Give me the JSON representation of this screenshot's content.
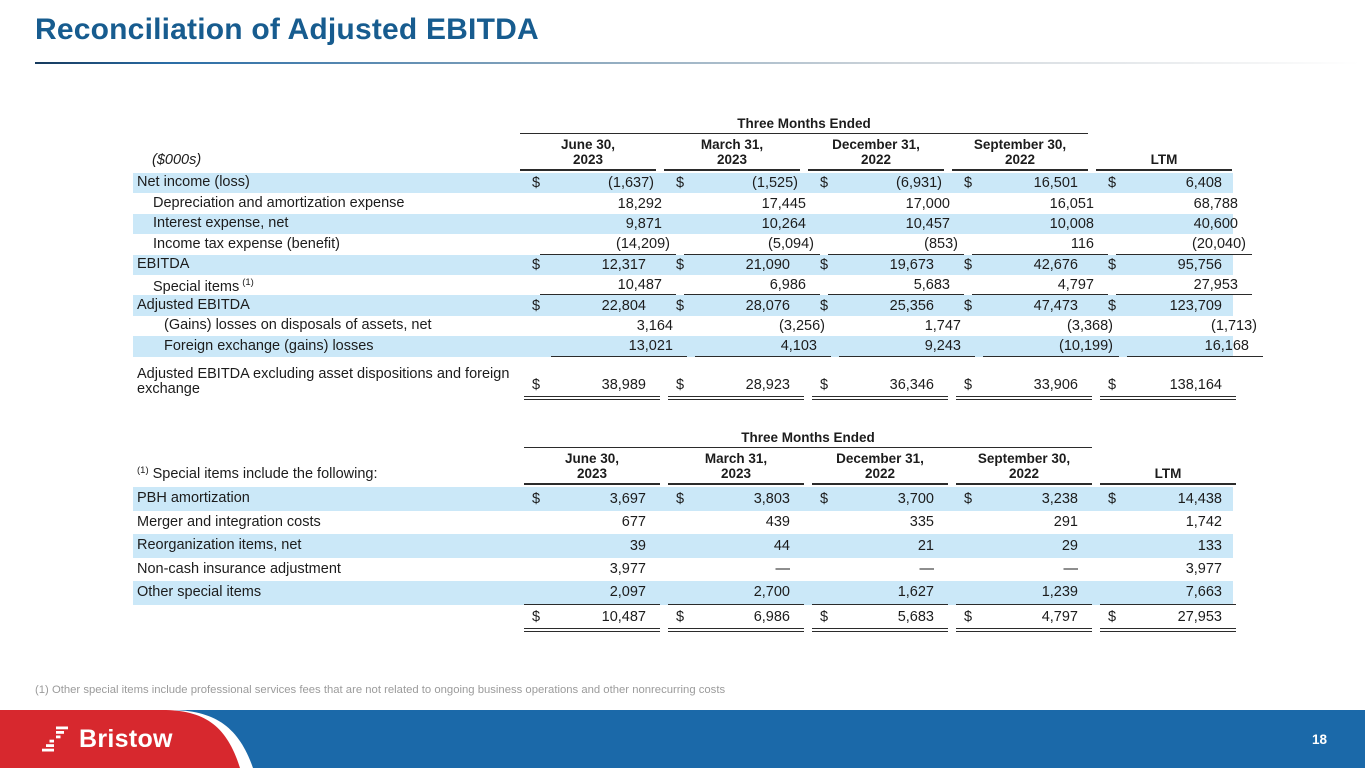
{
  "slide": {
    "title": "Reconciliation of Adjusted EBITDA",
    "page_number": "18",
    "footnote": "(1) Other special items include professional services fees that are not related to ongoing business operations and other nonrecurring costs",
    "logo_text": "Bristow"
  },
  "colors": {
    "title_blue": "#175C8F",
    "row_highlight": "#CBE8F8",
    "footer_blue": "#1B69A9",
    "footer_red": "#D7282E"
  },
  "table1": {
    "units_label": "($000s)",
    "span_header": "Three Months Ended",
    "currency": "$",
    "ltm_label": "LTM",
    "columns": [
      {
        "l1": "June 30,",
        "l2": "2023"
      },
      {
        "l1": "March 31,",
        "l2": "2023"
      },
      {
        "l1": "December 31,",
        "l2": "2022"
      },
      {
        "l1": "September 30,",
        "l2": "2022"
      }
    ],
    "rows": [
      {
        "label": "Net income (loss)",
        "indent": 0,
        "dollar": true,
        "highlight": true,
        "values": [
          "(1,637)",
          "(1,525)",
          "(6,931)",
          "16,501",
          "6,408"
        ]
      },
      {
        "label": "Depreciation and amortization expense",
        "indent": 1,
        "highlight": false,
        "values": [
          "18,292",
          "17,445",
          "17,000",
          "16,051",
          "68,788"
        ]
      },
      {
        "label": "Interest expense, net",
        "indent": 1,
        "highlight": true,
        "values": [
          "9,871",
          "10,264",
          "10,457",
          "10,008",
          "40,600"
        ]
      },
      {
        "label": "Income tax expense (benefit)",
        "indent": 1,
        "highlight": false,
        "underline": true,
        "values": [
          "(14,209)",
          "(5,094)",
          "(853)",
          "116",
          "(20,040)"
        ]
      },
      {
        "label": "EBITDA",
        "indent": 0,
        "dollar": true,
        "highlight": true,
        "values": [
          "12,317",
          "21,090",
          "19,673",
          "42,676",
          "95,756"
        ]
      },
      {
        "label": "Special items",
        "sup": "(1)",
        "indent": 1,
        "highlight": false,
        "underline": true,
        "values": [
          "10,487",
          "6,986",
          "5,683",
          "4,797",
          "27,953"
        ]
      },
      {
        "label": "Adjusted EBITDA",
        "indent": 0,
        "dollar": true,
        "highlight": true,
        "values": [
          "22,804",
          "28,076",
          "25,356",
          "47,473",
          "123,709"
        ]
      },
      {
        "label": "(Gains) losses on disposals of assets, net",
        "indent": 2,
        "highlight": false,
        "values": [
          "3,164",
          "(3,256)",
          "1,747",
          "(3,368)",
          "(1,713)"
        ]
      },
      {
        "label": "Foreign exchange (gains) losses",
        "indent": 2,
        "highlight": true,
        "underline": true,
        "values": [
          "13,021",
          "4,103",
          "9,243",
          "(10,199)",
          "16,168"
        ]
      },
      {
        "label": "Adjusted EBITDA excluding asset dispositions and foreign exchange",
        "indent": 0,
        "dollar": true,
        "highlight": false,
        "dbl": true,
        "tall": true,
        "values": [
          "38,989",
          "28,923",
          "36,346",
          "33,906",
          "138,164"
        ]
      }
    ]
  },
  "table2": {
    "label_sup": "(1)",
    "label_text": "Special items include the following:",
    "span_header": "Three Months Ended",
    "currency": "$",
    "ltm_label": "LTM",
    "columns": [
      {
        "l1": "June 30,",
        "l2": "2023"
      },
      {
        "l1": "March 31,",
        "l2": "2023"
      },
      {
        "l1": "December 31,",
        "l2": "2022"
      },
      {
        "l1": "September 30,",
        "l2": "2022"
      }
    ],
    "rows": [
      {
        "label": "PBH amortization",
        "indent": 0,
        "dollar": true,
        "highlight": true,
        "values": [
          "3,697",
          "3,803",
          "3,700",
          "3,238",
          "14,438"
        ]
      },
      {
        "label": "Merger and integration costs",
        "indent": 0,
        "highlight": false,
        "values": [
          "677",
          "439",
          "335",
          "291",
          "1,742"
        ]
      },
      {
        "label": "Reorganization items, net",
        "indent": 0,
        "highlight": true,
        "values": [
          "39",
          "44",
          "21",
          "29",
          "133"
        ]
      },
      {
        "label": "Non-cash insurance adjustment",
        "indent": 0,
        "highlight": false,
        "values": [
          "3,977",
          "—",
          "—",
          "—",
          "3,977"
        ]
      },
      {
        "label": "Other special items",
        "indent": 0,
        "highlight": true,
        "underline": true,
        "values": [
          "2,097",
          "2,700",
          "1,627",
          "1,239",
          "7,663"
        ]
      },
      {
        "label": "",
        "indent": 0,
        "dollar": true,
        "highlight": false,
        "dbl": true,
        "total": true,
        "values": [
          "10,487",
          "6,986",
          "5,683",
          "4,797",
          "27,953"
        ]
      }
    ]
  }
}
